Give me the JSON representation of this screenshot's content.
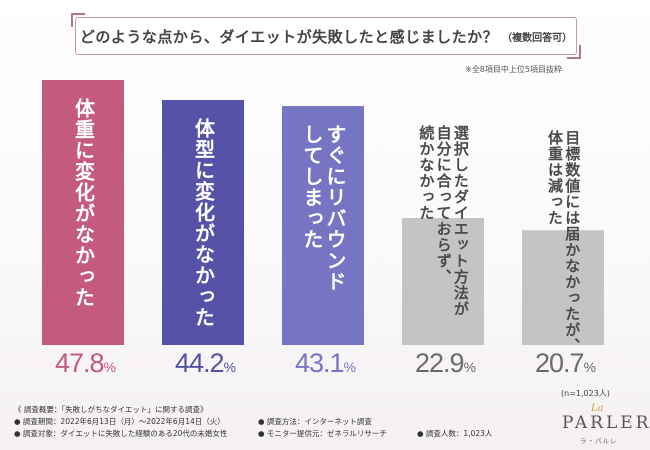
{
  "title": {
    "main": "どのような点から、ダイエットが失敗したと感じましたか？",
    "sub": "（複数回答可）"
  },
  "note": "※全8項目中上位5項目抜粋",
  "n_note": "(n=1,023人)",
  "chart_data": {
    "type": "bar",
    "categories": [
      "体重に変化がなかった",
      "体型に変化がなかった",
      "すぐにリバウンドしてしまった",
      "選択したダイエット方法が自分に合っておらず、続かなかった",
      "目標数値には届かなかったが、体重は減った"
    ],
    "values": [
      47.8,
      44.2,
      43.1,
      22.9,
      20.7
    ],
    "labels": [
      {
        "lines": [
          "体重に変化がなかった"
        ],
        "color": "#ffffff"
      },
      {
        "lines": [
          "体型に変化がなかった"
        ],
        "color": "#ffffff"
      },
      {
        "lines": [
          "すぐにリバウンド",
          "してしまった"
        ],
        "color": "#ffffff"
      },
      {
        "lines": [
          "選択したダイエット方法が",
          "自分に合っておらず、",
          "続かなかった"
        ],
        "color": "#4a4a4a"
      },
      {
        "lines": [
          "目標数値には届かなかったが、",
          "体重は減った"
        ],
        "color": "#4a4a4a"
      }
    ],
    "value_text": [
      {
        "num": "47.8",
        "sym": "%"
      },
      {
        "num": "44.2",
        "sym": "%"
      },
      {
        "num": "43.1",
        "sym": "%"
      },
      {
        "num": "22.9",
        "sym": "%"
      },
      {
        "num": "20.7",
        "sym": "%"
      }
    ],
    "colors": [
      "#c45a7d",
      "#5553a8",
      "#7575c4",
      "#c4c4c4",
      "#c4c4c4"
    ],
    "unit": "%",
    "ylim": [
      0,
      47.8
    ]
  },
  "footer": {
    "line1": "《 調査概要：「失敗しがちなダイエット」に関する調査》",
    "line2": "● 調査期間：2022年6月13日（月）〜2022年6月14日（火）",
    "line3": "● 調査対象：ダイエットに失敗した経験のある20代の未婚女性",
    "col2_line1": "● 調査方法：インターネット調査",
    "col2_line2": "● モニター提供元：ゼネラルリサーチ",
    "col3": "● 調査人数：1,023人"
  },
  "logo": {
    "script": "La",
    "name": "PARLER",
    "kana": "ラ・パルレ"
  }
}
